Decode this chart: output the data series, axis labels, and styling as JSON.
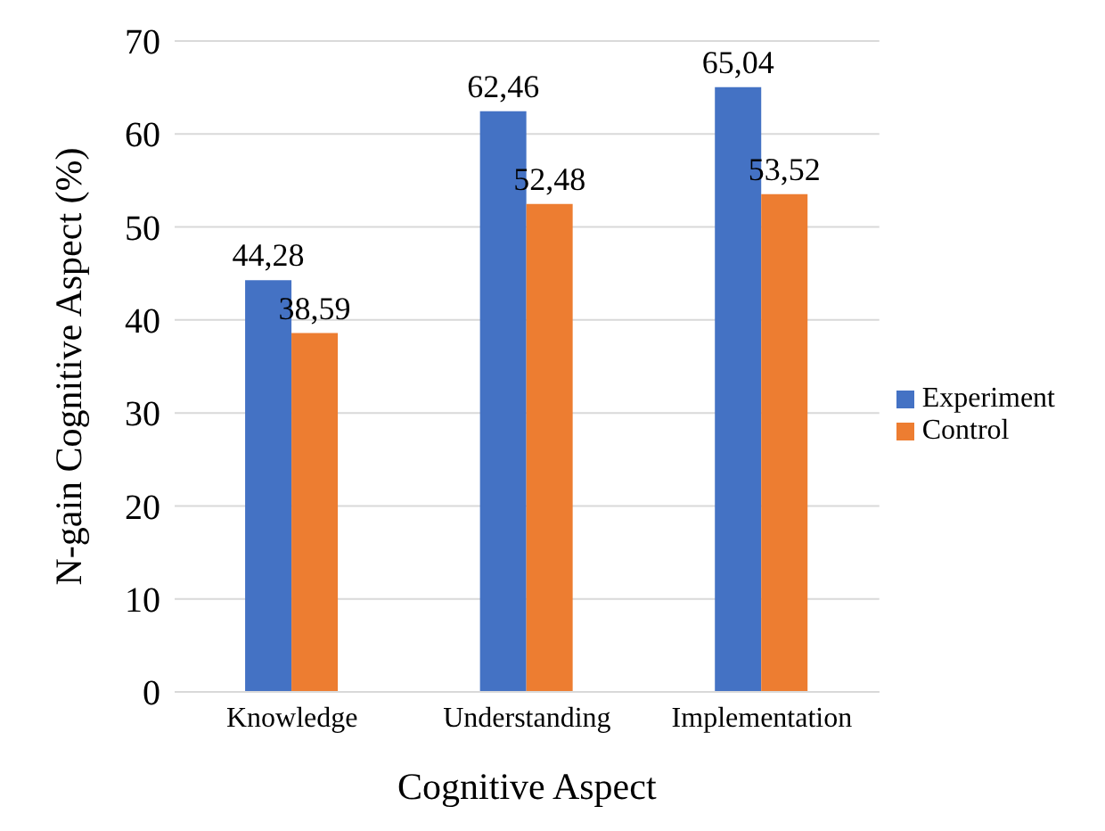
{
  "chart_data": {
    "type": "bar",
    "xlabel": "Cognitive Aspect",
    "ylabel": "N-gain Cognitive Aspect (%)",
    "categories": [
      "Knowledge",
      "Understanding",
      "Implementation"
    ],
    "series": [
      {
        "name": "Experiment",
        "color": "#4472c4",
        "values": [
          44.28,
          62.46,
          65.04
        ],
        "value_labels": [
          "44,28",
          "62,46",
          "65,04"
        ]
      },
      {
        "name": "Control",
        "color": "#ed7d31",
        "values": [
          38.59,
          52.48,
          53.52
        ],
        "value_labels": [
          "38,59",
          "52,48",
          "53,52"
        ]
      }
    ],
    "ylim": [
      0,
      70
    ],
    "yticks": [
      0,
      10,
      20,
      30,
      40,
      50,
      60,
      70
    ],
    "grid": "y",
    "legend": "right"
  }
}
